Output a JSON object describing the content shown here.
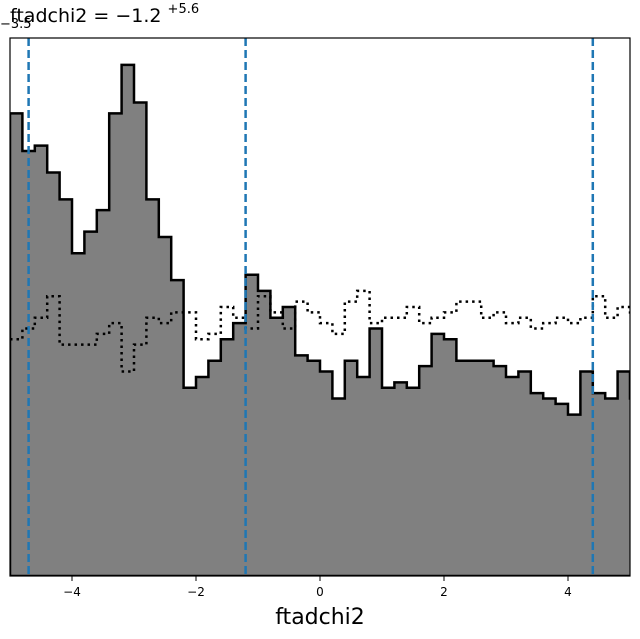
{
  "chart_data": {
    "type": "area",
    "title": {
      "base": "ftadchi2 = −1.2",
      "sup": "+5.6",
      "sub": "−3.5"
    },
    "xlabel": "ftadchi2",
    "ylabel": "",
    "xlim": [
      -5.0,
      5.0
    ],
    "ylim": [
      0,
      1.0
    ],
    "xticks": [
      {
        "value": -4,
        "label": "−4"
      },
      {
        "value": -2,
        "label": "−2"
      },
      {
        "value": 0,
        "label": "0"
      },
      {
        "value": 2,
        "label": "2"
      },
      {
        "value": 4,
        "label": "4"
      }
    ],
    "show_y_ticks": false,
    "grid": false,
    "bin_start": -5.0,
    "bin_width": 0.2,
    "series": [
      {
        "style": "filled-step",
        "fill_color": "#808080",
        "line_color": "#000000",
        "values": [
          0.86,
          0.79,
          0.8,
          0.75,
          0.7,
          0.6,
          0.64,
          0.68,
          0.86,
          0.95,
          0.88,
          0.7,
          0.63,
          0.55,
          0.35,
          0.37,
          0.4,
          0.44,
          0.47,
          0.56,
          0.53,
          0.48,
          0.5,
          0.41,
          0.4,
          0.38,
          0.33,
          0.4,
          0.37,
          0.46,
          0.35,
          0.36,
          0.35,
          0.39,
          0.45,
          0.44,
          0.4,
          0.4,
          0.4,
          0.39,
          0.37,
          0.38,
          0.34,
          0.33,
          0.32,
          0.3,
          0.38,
          0.34,
          0.33,
          0.38,
          0.33,
          0.32,
          0.42,
          0.43,
          0.38
        ]
      },
      {
        "style": "dotted-step",
        "line_color": "#000000",
        "values": [
          0.44,
          0.46,
          0.48,
          0.52,
          0.43,
          0.43,
          0.43,
          0.45,
          0.47,
          0.38,
          0.43,
          0.48,
          0.47,
          0.49,
          0.49,
          0.44,
          0.45,
          0.5,
          0.48,
          0.46,
          0.52,
          0.49,
          0.46,
          0.51,
          0.49,
          0.47,
          0.45,
          0.51,
          0.53,
          0.47,
          0.48,
          0.48,
          0.5,
          0.47,
          0.48,
          0.49,
          0.51,
          0.51,
          0.48,
          0.49,
          0.47,
          0.48,
          0.46,
          0.47,
          0.48,
          0.47,
          0.48,
          0.52,
          0.48,
          0.5,
          0.49,
          0.49,
          0.5,
          0.51,
          0.52
        ]
      }
    ],
    "vlines": [
      {
        "x": -4.7,
        "style": "dashed",
        "color": "#1f77b4"
      },
      {
        "x": -1.2,
        "style": "dashed",
        "color": "#1f77b4"
      },
      {
        "x": 4.4,
        "style": "dashed",
        "color": "#1f77b4"
      }
    ]
  }
}
